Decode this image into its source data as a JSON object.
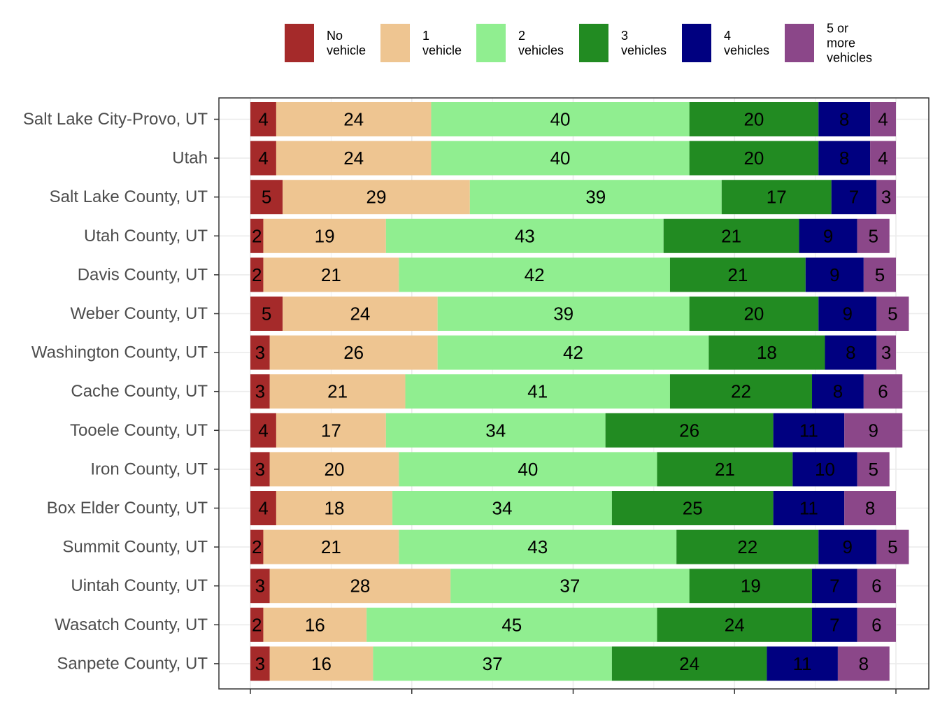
{
  "chart_data": {
    "type": "bar",
    "orientation": "horizontal",
    "stacked": true,
    "legend_position": "top",
    "grid": true,
    "xlim": [
      0,
      100
    ],
    "categories": [
      "Salt Lake City-Provo, UT",
      "Utah",
      "Salt Lake County, UT",
      "Utah County, UT",
      "Davis County, UT",
      "Weber County, UT",
      "Washington County, UT",
      "Cache County, UT",
      "Tooele County, UT",
      "Iron County, UT",
      "Box Elder County, UT",
      "Summit County, UT",
      "Uintah County, UT",
      "Wasatch County, UT",
      "Sanpete County, UT"
    ],
    "series": [
      {
        "name": "No vehicle",
        "legend_lines": [
          "No",
          "vehicle"
        ],
        "color": "#A52A2A",
        "values": [
          4,
          4,
          5,
          2,
          2,
          5,
          3,
          3,
          4,
          3,
          4,
          2,
          3,
          2,
          3
        ]
      },
      {
        "name": "1 vehicle",
        "legend_lines": [
          "1",
          "vehicle"
        ],
        "color": "#EEC591",
        "values": [
          24,
          24,
          29,
          19,
          21,
          24,
          26,
          21,
          17,
          20,
          18,
          21,
          28,
          16,
          16
        ]
      },
      {
        "name": "2 vehicles",
        "legend_lines": [
          "2",
          "vehicles"
        ],
        "color": "#90EE90",
        "values": [
          40,
          40,
          39,
          43,
          42,
          39,
          42,
          41,
          34,
          40,
          34,
          43,
          37,
          45,
          37
        ]
      },
      {
        "name": "3 vehicles",
        "legend_lines": [
          "3",
          "vehicles"
        ],
        "color": "#228B22",
        "values": [
          20,
          20,
          17,
          21,
          21,
          20,
          18,
          22,
          26,
          21,
          25,
          22,
          19,
          24,
          24
        ]
      },
      {
        "name": "4 vehicles",
        "legend_lines": [
          "4",
          "vehicles"
        ],
        "color": "#000080",
        "values": [
          8,
          8,
          7,
          9,
          9,
          9,
          8,
          8,
          11,
          10,
          11,
          9,
          7,
          7,
          11
        ]
      },
      {
        "name": "5 or more vehicles",
        "legend_lines": [
          "5 or",
          "more",
          "vehicles"
        ],
        "color": "#8B4789",
        "values": [
          4,
          4,
          3,
          5,
          5,
          5,
          3,
          6,
          9,
          5,
          8,
          5,
          6,
          6,
          8
        ]
      }
    ]
  }
}
